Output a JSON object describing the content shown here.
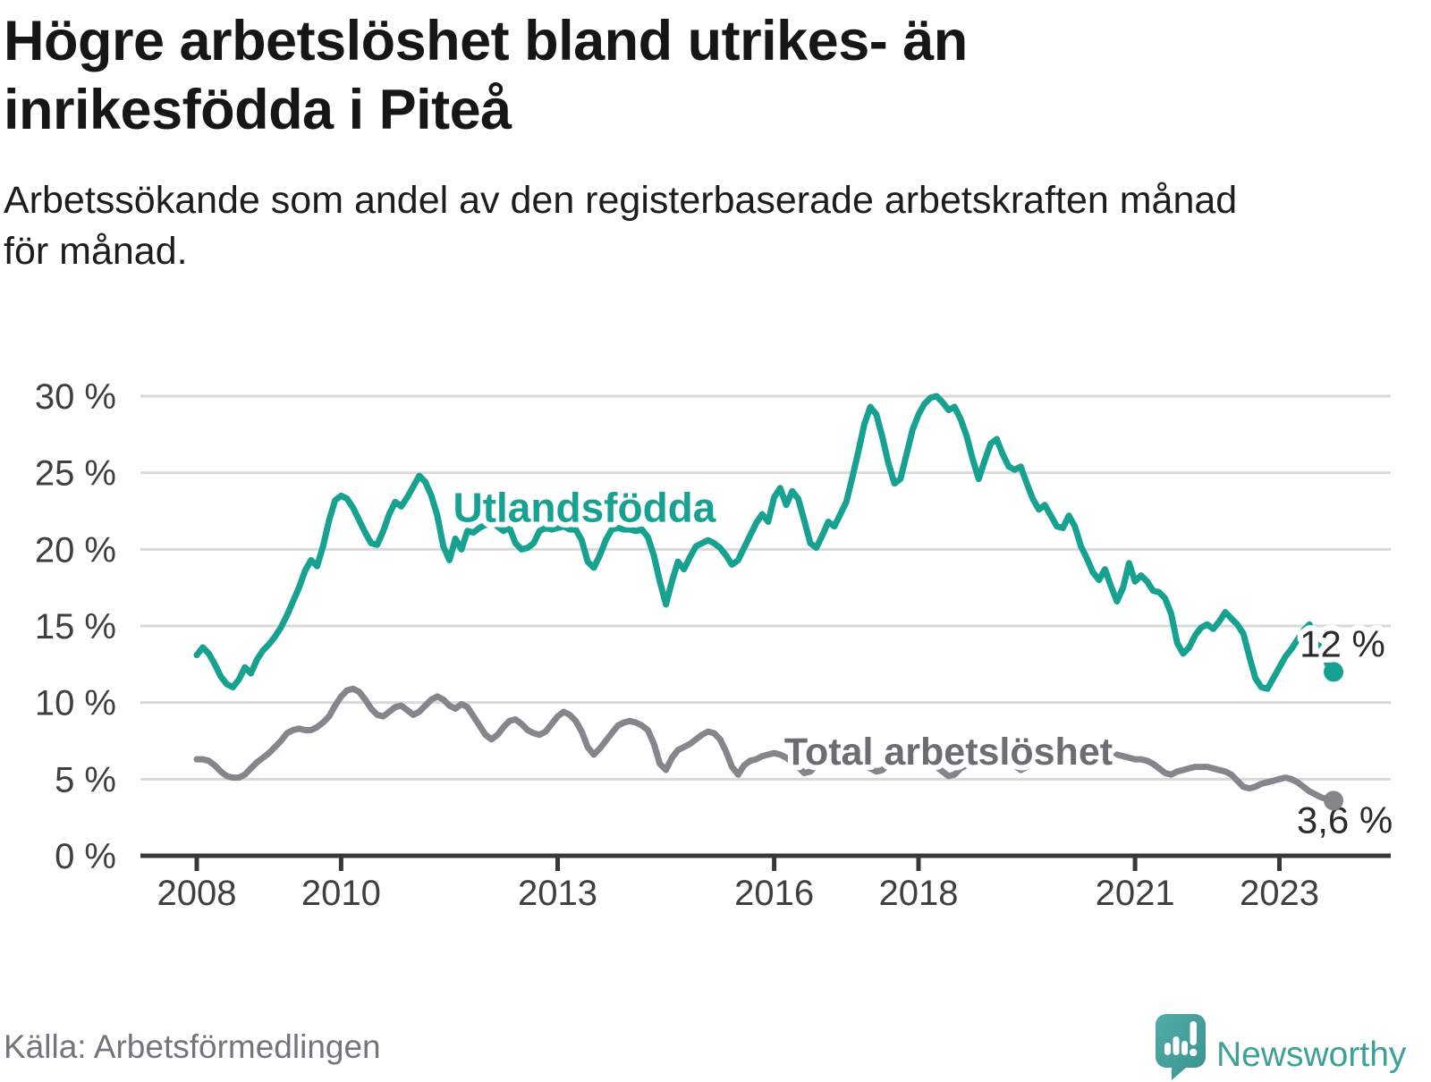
{
  "header": {
    "title_line1": "Högre arbetslöshet bland utrikes- än",
    "title_line2": "inrikesfödda i Piteå",
    "subtitle_line1": "Arbetssökande som andel av den registerbaserade arbetskraften månad",
    "subtitle_line2": "för månad."
  },
  "footer": {
    "source": "Källa: Arbetsförmedlingen",
    "brand": "Newsworthy"
  },
  "colors": {
    "foreign_born_line": "#17a191",
    "total_line": "#85858b",
    "total_label": "#6c6c73",
    "grid": "#d9d9d9",
    "axis": "#383838",
    "logo_teal": "#3da099"
  },
  "chart_data": {
    "type": "line",
    "title": "Högre arbetslöshet bland utrikes- än inrikesfödda i Piteå",
    "subtitle": "Arbetssökande som andel av den registerbaserade arbetskraften månad för månad.",
    "unit": "%",
    "grid": "horizontal",
    "legend_position": "inline-labels",
    "ylim": [
      0,
      30
    ],
    "x_start_year": 2008,
    "x_months_per_point": 1,
    "y_ticks": [
      {
        "label": "30 %",
        "value": 30
      },
      {
        "label": "25 %",
        "value": 25
      },
      {
        "label": "20 %",
        "value": 20
      },
      {
        "label": "15 %",
        "value": 15
      },
      {
        "label": "10 %",
        "value": 10
      },
      {
        "label": "5 %",
        "value": 5
      },
      {
        "label": "0 %",
        "value": 0
      }
    ],
    "x_ticks": [
      {
        "label": "2008",
        "year": 2008
      },
      {
        "label": "2010",
        "year": 2010
      },
      {
        "label": "2013",
        "year": 2013
      },
      {
        "label": "2016",
        "year": 2016
      },
      {
        "label": "2018",
        "year": 2018
      },
      {
        "label": "2021",
        "year": 2021
      },
      {
        "label": "2023",
        "year": 2023
      }
    ],
    "series": [
      {
        "name": "Utlandsfödda",
        "color": "#17a191",
        "end_label": "12 %",
        "end_value": 12.0,
        "values": [
          13.1,
          13.6,
          13.2,
          12.5,
          11.7,
          11.2,
          11.0,
          11.5,
          12.3,
          11.9,
          12.8,
          13.4,
          13.8,
          14.3,
          14.9,
          15.7,
          16.6,
          17.5,
          18.6,
          19.3,
          18.9,
          20.2,
          21.9,
          23.2,
          23.5,
          23.3,
          22.7,
          21.9,
          21.1,
          20.4,
          20.3,
          21.2,
          22.3,
          23.1,
          22.8,
          23.4,
          24.1,
          24.8,
          24.4,
          23.5,
          22.2,
          20.2,
          19.3,
          20.7,
          20.0,
          21.2,
          21.1,
          21.4,
          21.6,
          21.8,
          21.5,
          21.2,
          21.4,
          20.4,
          20.0,
          20.1,
          20.4,
          21.2,
          21.4,
          21.3,
          21.4,
          21.5,
          21.3,
          21.3,
          20.6,
          19.2,
          18.8,
          19.6,
          20.6,
          21.3,
          21.4,
          21.3,
          21.3,
          21.2,
          21.3,
          20.8,
          19.6,
          17.9,
          16.4,
          17.9,
          19.2,
          18.7,
          19.5,
          20.2,
          20.4,
          20.6,
          20.4,
          20.1,
          19.6,
          19.0,
          19.3,
          20.1,
          20.9,
          21.7,
          22.3,
          21.8,
          23.4,
          24.0,
          22.9,
          23.8,
          23.3,
          21.9,
          20.4,
          20.1,
          20.9,
          21.8,
          21.5,
          22.3,
          23.1,
          24.7,
          26.4,
          28.2,
          29.3,
          28.8,
          27.3,
          25.6,
          24.3,
          24.6,
          26.2,
          27.8,
          28.8,
          29.5,
          29.9,
          30.0,
          29.6,
          29.1,
          29.3,
          28.5,
          27.4,
          25.9,
          24.6,
          25.8,
          26.9,
          27.2,
          26.2,
          25.4,
          25.2,
          25.4,
          24.3,
          23.3,
          22.6,
          22.9,
          22.2,
          21.5,
          21.4,
          22.2,
          21.5,
          20.2,
          19.4,
          18.5,
          18.0,
          18.7,
          17.6,
          16.6,
          17.5,
          19.1,
          17.9,
          18.3,
          17.9,
          17.3,
          17.2,
          16.8,
          15.8,
          13.9,
          13.2,
          13.6,
          14.4,
          14.9,
          15.1,
          14.8,
          15.3,
          15.9,
          15.5,
          15.1,
          14.5,
          13.0,
          11.6,
          11.0,
          10.9,
          11.6,
          12.3,
          13.0,
          13.5,
          14.1,
          14.7,
          15.1,
          14.3,
          13.3,
          12.5,
          12.0
        ]
      },
      {
        "name": "Total arbetslöshet",
        "color": "#85858b",
        "end_label": "3,6 %",
        "end_value": 3.6,
        "values": [
          6.3,
          6.3,
          6.2,
          5.9,
          5.5,
          5.2,
          5.1,
          5.1,
          5.3,
          5.7,
          6.1,
          6.4,
          6.7,
          7.1,
          7.5,
          8.0,
          8.2,
          8.3,
          8.2,
          8.2,
          8.4,
          8.7,
          9.1,
          9.8,
          10.4,
          10.8,
          10.9,
          10.7,
          10.2,
          9.6,
          9.2,
          9.1,
          9.4,
          9.7,
          9.8,
          9.5,
          9.2,
          9.4,
          9.8,
          10.2,
          10.4,
          10.2,
          9.8,
          9.6,
          9.9,
          9.7,
          9.1,
          8.5,
          7.9,
          7.6,
          7.9,
          8.4,
          8.8,
          8.9,
          8.6,
          8.2,
          8.0,
          7.9,
          8.1,
          8.6,
          9.1,
          9.4,
          9.2,
          8.8,
          8.1,
          7.1,
          6.6,
          7.0,
          7.5,
          8.0,
          8.5,
          8.7,
          8.8,
          8.7,
          8.5,
          8.2,
          7.3,
          6.0,
          5.6,
          6.4,
          6.9,
          7.1,
          7.3,
          7.6,
          7.9,
          8.1,
          8.0,
          7.6,
          6.8,
          5.8,
          5.3,
          5.9,
          6.2,
          6.3,
          6.5,
          6.6,
          6.7,
          6.6,
          6.4,
          6.1,
          5.8,
          5.4,
          5.5,
          5.9,
          6.1,
          6.2,
          6.3,
          6.5,
          6.6,
          6.5,
          6.3,
          6.0,
          5.7,
          5.5,
          5.6,
          6.0,
          6.2,
          6.3,
          6.4,
          6.4,
          6.3,
          6.2,
          6.0,
          5.8,
          5.5,
          5.2,
          5.3,
          5.7,
          5.9,
          6.1,
          6.3,
          6.4,
          6.5,
          6.5,
          6.4,
          6.2,
          5.9,
          5.6,
          5.8,
          6.1,
          6.3,
          6.4,
          6.6,
          6.7,
          6.8,
          6.9,
          7.1,
          7.2,
          7.1,
          7.0,
          6.9,
          6.8,
          6.7,
          6.6,
          6.5,
          6.4,
          6.3,
          6.3,
          6.2,
          6.0,
          5.7,
          5.4,
          5.3,
          5.5,
          5.6,
          5.7,
          5.8,
          5.8,
          5.8,
          5.7,
          5.6,
          5.5,
          5.3,
          4.9,
          4.5,
          4.4,
          4.5,
          4.7,
          4.8,
          4.9,
          5.0,
          5.1,
          5.0,
          4.8,
          4.5,
          4.2,
          4.0,
          3.8,
          3.7,
          3.6
        ]
      }
    ],
    "annotations": [
      {
        "text": "Utlandsfödda",
        "series": 0,
        "x_year": 2011.55,
        "y_value": 21.8,
        "font_size": 46,
        "bold": true,
        "color": "#17a191"
      },
      {
        "text": "Total arbetslöshet",
        "series": 1,
        "x_year": 2016.14,
        "y_value": 5.95,
        "font_size": 43,
        "bold": true,
        "color": "#6c6c73"
      },
      {
        "text": "12 %",
        "series": 0,
        "x_year": 2023.28,
        "y_value": 13.0,
        "font_size": 42,
        "bold": false,
        "color": "#2b2b2b"
      },
      {
        "text": "3,6 %",
        "series": 1,
        "x_year": 2023.24,
        "y_value": 1.5,
        "font_size": 42,
        "bold": false,
        "color": "#2b2b2b"
      }
    ]
  }
}
